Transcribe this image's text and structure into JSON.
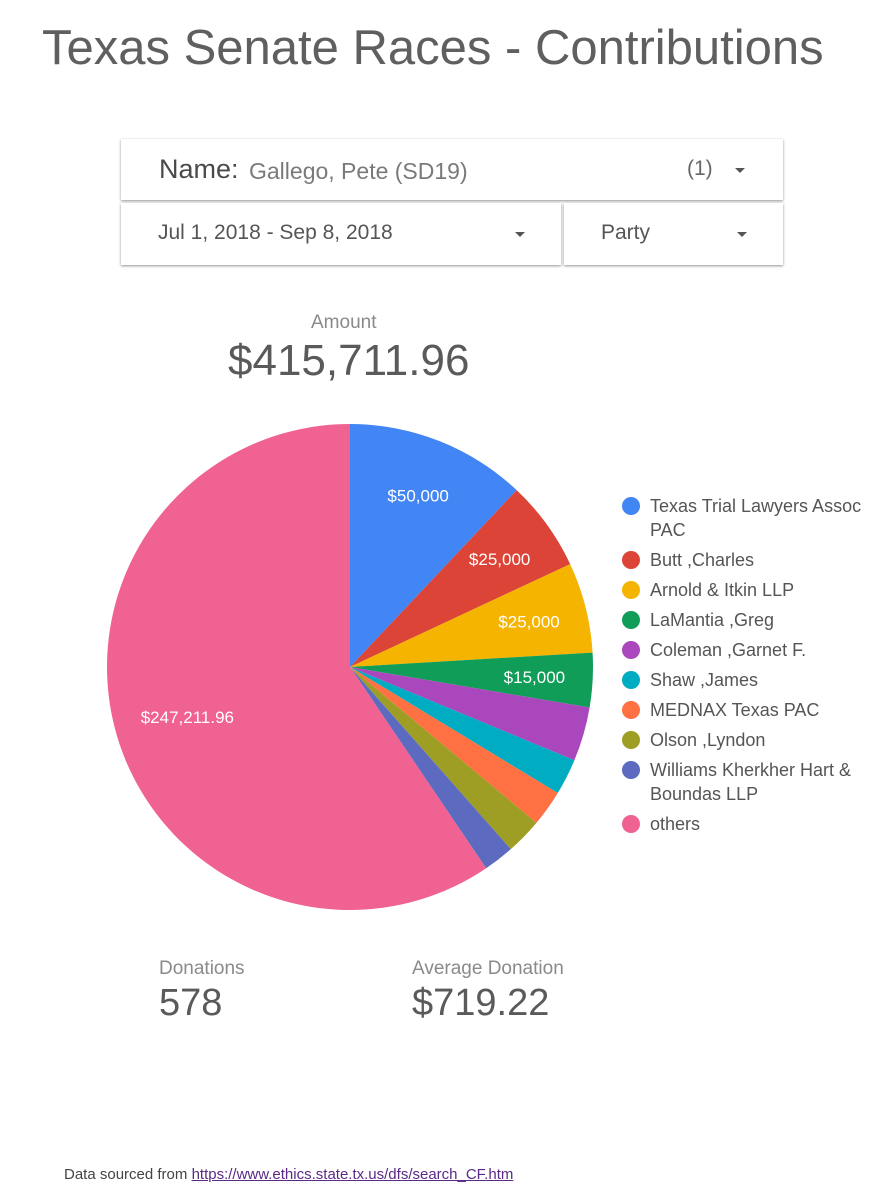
{
  "title": "Texas Senate Races - Contributions",
  "filters": {
    "name_label": "Name",
    "name_value": "Gallego, Pete (SD19)",
    "name_count": "(1)",
    "date_range": "Jul 1, 2018 - Sep 8, 2018",
    "party": "Party"
  },
  "metrics": {
    "amount_label": "Amount",
    "amount_value": "$415,711.96",
    "donations_label": "Donations",
    "donations_value": "578",
    "avg_label": "Average Donation",
    "avg_value": "$719.22"
  },
  "chart_data": {
    "type": "pie",
    "total": 415711.96,
    "legend_position": "right",
    "slices": [
      {
        "name": "Texas Trial Lawyers Assoc PAC",
        "value": 50000,
        "label": "$50,000",
        "color": "#4285f4"
      },
      {
        "name": "Butt ,Charles",
        "value": 25000,
        "label": "$25,000",
        "color": "#db4437"
      },
      {
        "name": "Arnold & Itkin LLP",
        "value": 25000,
        "label": "$25,000",
        "color": "#f4b400"
      },
      {
        "name": "LaMantia ,Greg",
        "value": 15000,
        "label": "$15,000",
        "color": "#0f9d58"
      },
      {
        "name": "Coleman ,Garnet F.",
        "value": 15000,
        "label": "",
        "color": "#ab47bc"
      },
      {
        "name": "Shaw ,James",
        "value": 10000,
        "label": "",
        "color": "#00acc1"
      },
      {
        "name": "MEDNAX Texas PAC",
        "value": 10000,
        "label": "",
        "color": "#ff7043"
      },
      {
        "name": "Olson ,Lyndon",
        "value": 10000,
        "label": "",
        "color": "#9e9d24"
      },
      {
        "name": "Williams Kherkher Hart & Boundas LLP",
        "value": 8500,
        "label": "",
        "color": "#5c6bc0"
      },
      {
        "name": "others",
        "value": 247211.96,
        "label": "$247,211.96",
        "color": "#f06292"
      }
    ]
  },
  "footer": {
    "prefix": "Data sourced from",
    "link_text": "https://www.ethics.state.tx.us/dfs/search_CF.htm"
  }
}
